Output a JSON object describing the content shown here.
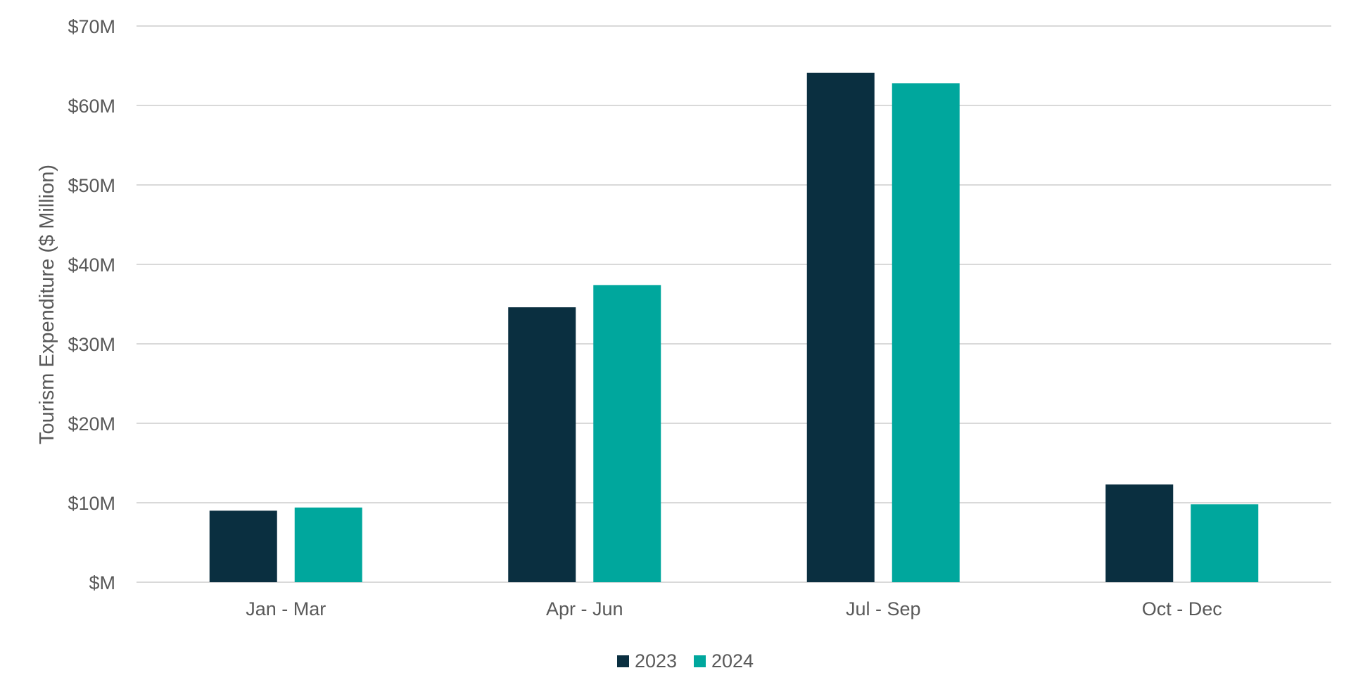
{
  "chart_data": {
    "type": "bar",
    "title": "",
    "xlabel": "",
    "ylabel": "Tourism Expenditure ($ Million)",
    "ylim": [
      0,
      70
    ],
    "y_ticks": [
      0,
      10,
      20,
      30,
      40,
      50,
      60,
      70
    ],
    "y_tick_labels": [
      "$M",
      "$10M",
      "$20M",
      "$30M",
      "$40M",
      "$50M",
      "$60M",
      "$70M"
    ],
    "categories": [
      "Jan - Mar",
      "Apr - Jun",
      "Jul - Sep",
      "Oct - Dec"
    ],
    "series": [
      {
        "name": "2023",
        "color": "#0a2f40",
        "values": [
          9.0,
          34.6,
          64.1,
          12.3
        ]
      },
      {
        "name": "2024",
        "color": "#00a79d",
        "values": [
          9.4,
          37.4,
          62.8,
          9.8
        ]
      }
    ],
    "grid": true,
    "legend_position": "bottom-center",
    "colors": {
      "grid": "#d9d9d9",
      "axis_text": "#595959"
    }
  }
}
